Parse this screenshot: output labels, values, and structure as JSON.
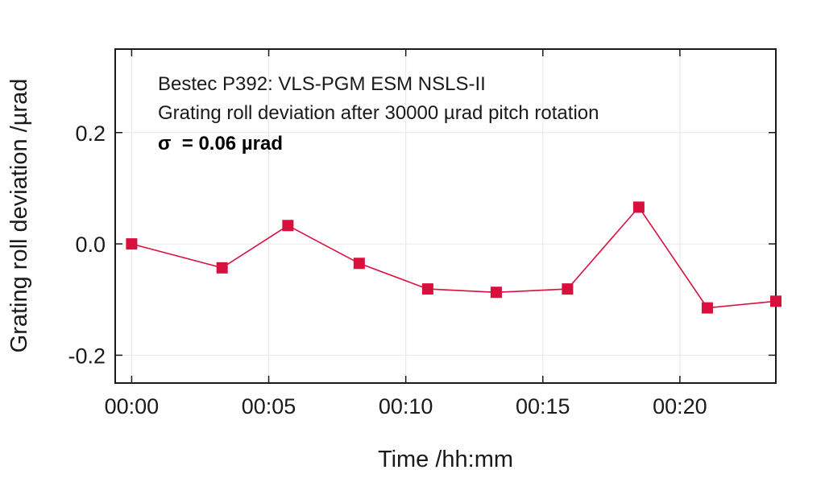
{
  "chart_data": {
    "type": "line",
    "xlabel": "Time /hh:mm",
    "ylabel": "Grating roll deviation /µrad",
    "x_tick_labels": [
      "00:00",
      "00:05",
      "00:10",
      "00:15",
      "00:20"
    ],
    "y_tick_labels": [
      "-0.2",
      "0.0",
      "0.2"
    ],
    "xlim_minutes": [
      -0.6,
      23.5
    ],
    "ylim": [
      -0.25,
      0.35
    ],
    "grid": true,
    "annotation": {
      "line1": "Bestec P392: VLS-PGM ESM NSLS-II",
      "line2": "Grating roll deviation after 30000 µrad pitch rotation",
      "line3": "σ  = 0.06 µrad"
    },
    "series": [
      {
        "x": [
          "00:00",
          "00:03",
          "00:06",
          "00:08",
          "00:11",
          "00:13",
          "00:16",
          "00:19",
          "00:21",
          "00:23"
        ],
        "x_minutes": [
          0.0,
          3.3,
          5.7,
          8.3,
          10.8,
          13.3,
          15.9,
          18.5,
          21.0,
          23.5
        ],
        "y": [
          0.0,
          -0.043,
          0.033,
          -0.035,
          -0.081,
          -0.087,
          -0.081,
          0.066,
          -0.115,
          -0.103
        ],
        "color": "#d7103e"
      }
    ]
  }
}
